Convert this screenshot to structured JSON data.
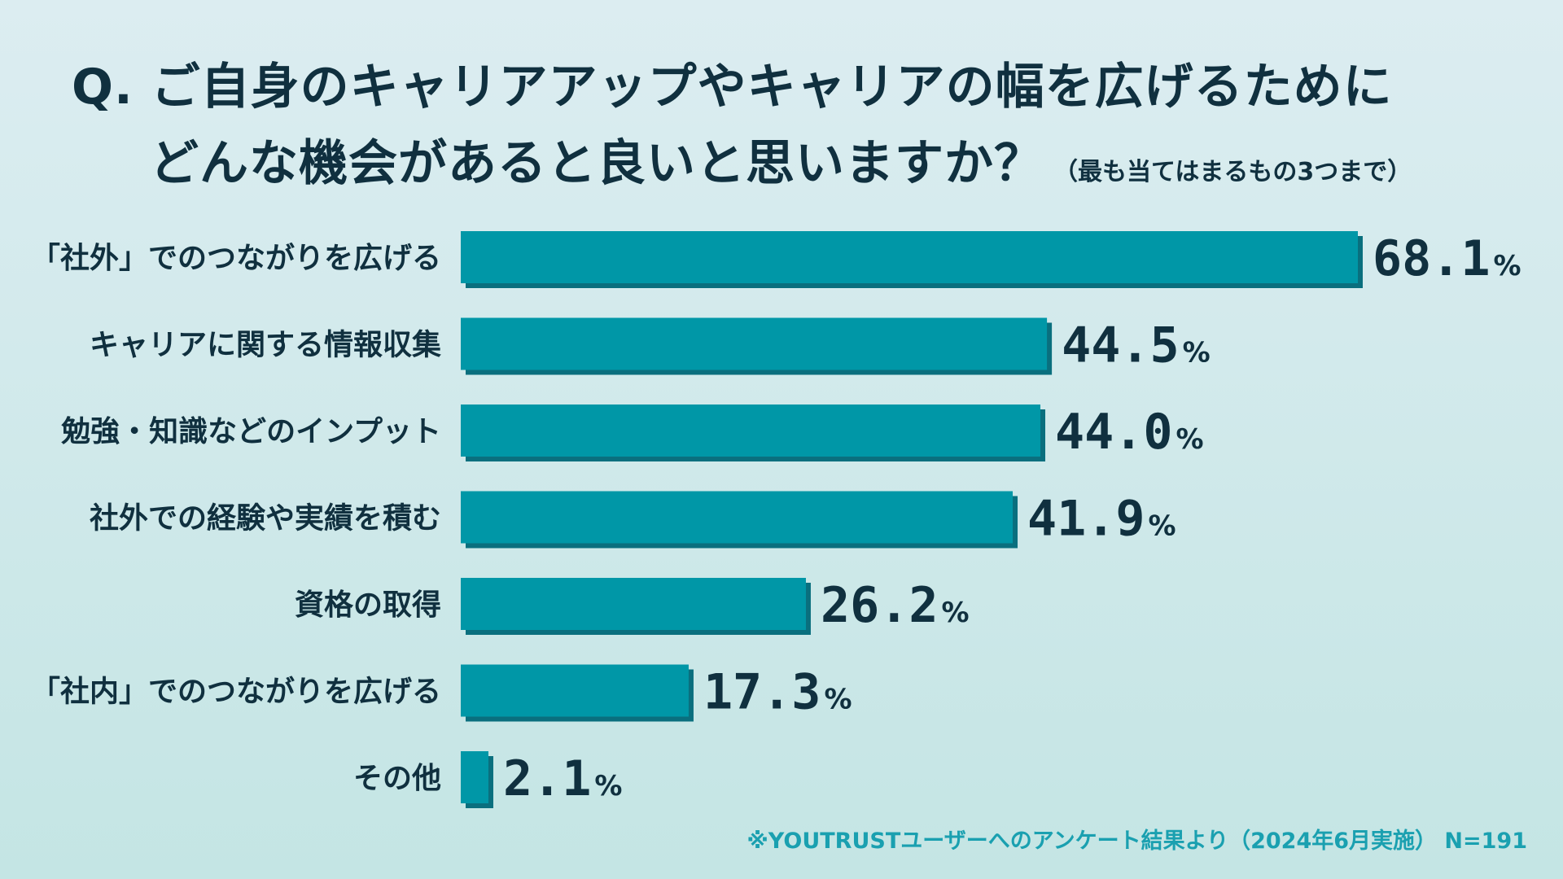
{
  "title": {
    "line1": "Q. ご自身のキャリアアップやキャリアの幅を広げるために",
    "line2": "どんな機会があると良いと思いますか？",
    "note": "（最も当てはまるもの3つまで）"
  },
  "chart_data": {
    "type": "bar",
    "orientation": "horizontal",
    "categories": [
      "「社外」でのつながりを広げる",
      "キャリアに関する情報収集",
      "勉強・知識などのインプット",
      "社外での経験や実績を積む",
      "資格の取得",
      "「社内」でのつながりを広げる",
      "その他"
    ],
    "values": [
      68.1,
      44.5,
      44.0,
      41.9,
      26.2,
      17.3,
      2.1
    ],
    "value_labels": [
      "68.1",
      "44.5",
      "44.0",
      "41.9",
      "26.2",
      "17.3",
      "2.1"
    ],
    "unit": "%",
    "xlim": [
      0,
      68.1
    ],
    "grid": false,
    "legend": "none",
    "colors": {
      "bar": "#0097a7",
      "bar_shadow": "#0a6f7e",
      "text": "#10303f"
    }
  },
  "footnote": "※YOUTRUSTユーザーへのアンケート結果より（2024年6月実施） N=191"
}
